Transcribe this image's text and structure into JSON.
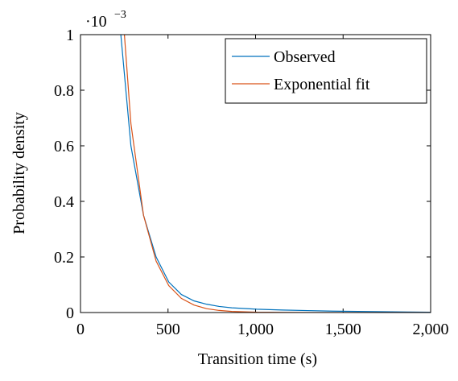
{
  "chart_data": {
    "type": "line",
    "xlabel": "Transition time (s)",
    "ylabel": "Probability density",
    "yscale": {
      "base": "·10",
      "exponent": "−3"
    },
    "xlim": [
      0,
      2000
    ],
    "ylim": [
      0,
      1
    ],
    "xticks": [
      0,
      500,
      {
        "value": 1000,
        "label": "1,000"
      },
      {
        "value": 1500,
        "label": "1,500"
      },
      {
        "value": 2000,
        "label": "2,000"
      }
    ],
    "yticks": [
      0,
      0.2,
      0.4,
      0.6,
      0.8,
      1
    ],
    "grid": false,
    "legend": "upper right",
    "series": [
      {
        "name": "Observed",
        "color": "#0072bd",
        "x": [
          216,
          288,
          360,
          432,
          504,
          576,
          648,
          720,
          792,
          864,
          1008,
          1152,
          1296,
          1440,
          1584,
          1728,
          1872,
          2000
        ],
        "values": [
          1.1,
          0.6,
          0.35,
          0.2,
          0.11,
          0.065,
          0.042,
          0.03,
          0.022,
          0.017,
          0.012,
          0.009,
          0.007,
          0.005,
          0.004,
          0.003,
          0.002,
          0.001
        ]
      },
      {
        "name": "Exponential fit",
        "color": "#d95319",
        "x": [
          216,
          288,
          360,
          432,
          504,
          576,
          648,
          720,
          792,
          864,
          1008,
          1152,
          1296,
          1440,
          1584,
          1728,
          1872,
          2000
        ],
        "values": [
          1.3,
          0.68,
          0.35,
          0.185,
          0.097,
          0.051,
          0.027,
          0.014,
          0.0075,
          0.004,
          0.001,
          0.0003,
          0.0001,
          0,
          0,
          0,
          0,
          0
        ]
      }
    ]
  }
}
